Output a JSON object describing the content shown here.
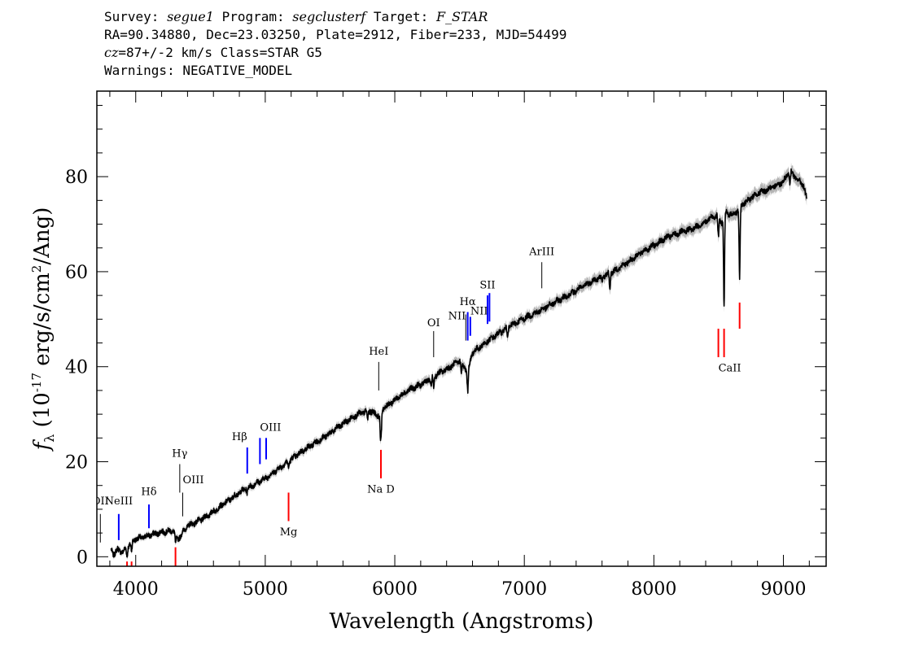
{
  "header": {
    "survey_label": "Survey: ",
    "survey": "segue1",
    "program_label": " Program: ",
    "program": "segclusterf",
    "target_label": " Target: ",
    "target": "F_STAR",
    "line2": "RA=90.34880, Dec=23.03250, Plate=2912, Fiber=233, MJD=54499",
    "cz_label": "cz",
    "line3_rest": "=87+/-2 km/s Class=STAR G5",
    "line4": "Warnings: NEGATIVE_MODEL"
  },
  "chart_data": {
    "type": "line",
    "xlabel": "Wavelength (Angstroms)",
    "ylabel_parts": [
      "f",
      "λ",
      " (10",
      "-17",
      " erg/s/cm",
      "2",
      "/Ang)"
    ],
    "xlim": [
      3700,
      9330
    ],
    "ylim": [
      -2,
      98
    ],
    "xticks": [
      4000,
      5000,
      6000,
      7000,
      8000,
      9000
    ],
    "yticks": [
      0,
      20,
      40,
      60,
      80
    ],
    "grid": false,
    "colors": {
      "spectrum": "#000000",
      "error_band": "#b4b4b4",
      "emission": "#0000ff",
      "absorption": "#ff0000",
      "neutral": "#000000"
    },
    "series": [
      {
        "x": [
          3810,
          3830,
          3860,
          3900,
          3950,
          4000,
          4050,
          4100,
          4200,
          4300,
          4320,
          4400,
          4500,
          4600,
          4700,
          4800,
          4860,
          4900,
          5000,
          5100,
          5200,
          5300,
          5400,
          5500,
          5600,
          5700,
          5800,
          5890,
          5900,
          6000,
          6100,
          6200,
          6300,
          6400,
          6500,
          6563,
          6600,
          6700,
          6800,
          6900,
          7000,
          7100,
          7200,
          7300,
          7400,
          7500,
          7600,
          7700,
          7800,
          7900,
          8000,
          8100,
          8200,
          8300,
          8400,
          8450,
          8498,
          8520,
          8542,
          8580,
          8620,
          8662,
          8700,
          8800,
          8850,
          8900,
          9000,
          9050,
          9100,
          9150,
          9180
        ],
        "y": [
          1.5,
          0.5,
          1.5,
          1.0,
          2.5,
          3.8,
          4.0,
          4.5,
          5.2,
          5.5,
          3.5,
          6.5,
          7.7,
          9.5,
          11.5,
          13.5,
          14.5,
          15.0,
          16.5,
          18.5,
          20.5,
          22.5,
          24.2,
          26.0,
          28.0,
          29.8,
          30.8,
          29.5,
          31.0,
          33.0,
          35.0,
          36.2,
          38.0,
          39.5,
          41.2,
          39.0,
          43.0,
          45.0,
          47.0,
          48.7,
          50.2,
          51.5,
          53.0,
          54.5,
          56.0,
          57.7,
          59.0,
          60.2,
          62.0,
          64.0,
          65.5,
          67.2,
          68.2,
          69.0,
          70.5,
          71.5,
          72.0,
          70.0,
          72.5,
          72.2,
          72.0,
          73.5,
          74.5,
          76.5,
          77.0,
          77.5,
          79.0,
          81.5,
          79.5,
          78.5,
          75.5
        ]
      }
    ],
    "absorption_dips": [
      {
        "x": 3933,
        "depth": 2.0
      },
      {
        "x": 3968,
        "depth": 1.8
      },
      {
        "x": 4307,
        "depth": 2.2
      },
      {
        "x": 4861,
        "depth": 1.0
      },
      {
        "x": 5180,
        "depth": 1.2
      },
      {
        "x": 5790,
        "depth": 2.0
      },
      {
        "x": 5890,
        "depth": 4.0
      },
      {
        "x": 5896,
        "depth": 3.5
      },
      {
        "x": 6280,
        "depth": 2.0
      },
      {
        "x": 6300,
        "depth": 2.5
      },
      {
        "x": 6515,
        "depth": 2.0
      },
      {
        "x": 6563,
        "depth": 4.5
      },
      {
        "x": 6870,
        "depth": 1.5
      },
      {
        "x": 7600,
        "depth": 1.5
      },
      {
        "x": 7660,
        "depth": 3.5
      },
      {
        "x": 8498,
        "depth": 5.0
      },
      {
        "x": 8542,
        "depth": 20.0
      },
      {
        "x": 8662,
        "depth": 15.0
      },
      {
        "x": 9050,
        "depth": 3.0
      }
    ],
    "line_markers": [
      {
        "label": "OII",
        "x": 3727,
        "y0": 3,
        "y1": 9,
        "color": "neutral",
        "label_y": 11,
        "anchor": "middle"
      },
      {
        "label": "NeIII",
        "x": 3869,
        "y0": 3.5,
        "y1": 9,
        "color": "emission",
        "label_y": 11,
        "anchor": "middle"
      },
      {
        "label": "Hδ",
        "x": 4102,
        "y0": 6,
        "y1": 11,
        "color": "emission",
        "label_y": 13,
        "anchor": "middle"
      },
      {
        "label": "Hγ",
        "x": 4340,
        "y0": 13.5,
        "y1": 19.5,
        "color": "neutral",
        "label_y": 21,
        "anchor": "middle"
      },
      {
        "label": "OIII",
        "x": 4363,
        "y0": 8.5,
        "y1": 13.5,
        "color": "neutral",
        "label_y": 15.5,
        "anchor": "start"
      },
      {
        "label": "Hβ",
        "x": 4861,
        "y0": 17.5,
        "y1": 23,
        "color": "emission",
        "label_y": 24.5,
        "anchor": "end"
      },
      {
        "label": "OIII",
        "x": 4959,
        "y0": 19.5,
        "y1": 25,
        "color": "emission",
        "label_y": 26.5,
        "anchor": "start"
      },
      {
        "label": "",
        "x": 5007,
        "y0": 20.5,
        "y1": 25,
        "color": "emission",
        "label_y": 0,
        "anchor": "middle"
      },
      {
        "label": "HeI",
        "x": 5876,
        "y0": 35,
        "y1": 41,
        "color": "neutral",
        "label_y": 42.5,
        "anchor": "middle"
      },
      {
        "label": "OI",
        "x": 6300,
        "y0": 42,
        "y1": 47.5,
        "color": "neutral",
        "label_y": 48.5,
        "anchor": "middle"
      },
      {
        "label": "NII",
        "x": 6548,
        "y0": 45.5,
        "y1": 51,
        "color": "neutral",
        "label_y": 50,
        "anchor": "end"
      },
      {
        "label": "Hα",
        "x": 6563,
        "y0": 45.5,
        "y1": 51.5,
        "color": "emission",
        "label_y": 53,
        "anchor": "middle"
      },
      {
        "label": "NII",
        "x": 6583,
        "y0": 46.5,
        "y1": 50.5,
        "color": "emission",
        "label_y": 51,
        "anchor": "start"
      },
      {
        "label": "SII",
        "x": 6716,
        "y0": 49,
        "y1": 55,
        "color": "emission",
        "label_y": 56.5,
        "anchor": "middle"
      },
      {
        "label": "",
        "x": 6731,
        "y0": 49.5,
        "y1": 55.5,
        "color": "emission",
        "label_y": 0,
        "anchor": "middle"
      },
      {
        "label": "ArIII",
        "x": 7135,
        "y0": 56.5,
        "y1": 62,
        "color": "neutral",
        "label_y": 63.5,
        "anchor": "middle"
      },
      {
        "label": "",
        "x": 3933,
        "y0": -3,
        "y1": -1,
        "color": "absorption",
        "label_y": 0,
        "anchor": "middle"
      },
      {
        "label": "",
        "x": 3968,
        "y0": -3,
        "y1": -1,
        "color": "absorption",
        "label_y": 0,
        "anchor": "middle"
      },
      {
        "label": "",
        "x": 4307,
        "y0": -3,
        "y1": 2,
        "color": "absorption",
        "label_y": 0,
        "anchor": "middle"
      },
      {
        "label": "Mg",
        "x": 5180,
        "y0": 7.5,
        "y1": 13.5,
        "color": "absorption",
        "label_y": 4.5,
        "anchor": "middle"
      },
      {
        "label": "Na D",
        "x": 5893,
        "y0": 16.5,
        "y1": 22.5,
        "color": "absorption",
        "label_y": 13.5,
        "anchor": "middle"
      },
      {
        "label": "CaII",
        "x": 8498,
        "y0": 42,
        "y1": 48,
        "color": "absorption",
        "label_y": 39,
        "anchor": "start"
      },
      {
        "label": "",
        "x": 8542,
        "y0": 42,
        "y1": 48,
        "color": "absorption",
        "label_y": 0,
        "anchor": "middle"
      },
      {
        "label": "",
        "x": 8662,
        "y0": 48,
        "y1": 53.5,
        "color": "absorption",
        "label_y": 0,
        "anchor": "middle"
      }
    ]
  }
}
